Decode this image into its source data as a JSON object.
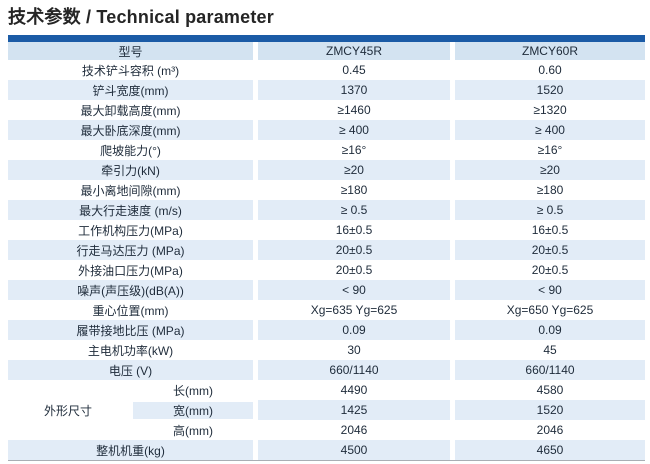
{
  "title": "技术参数 / Technical parameter",
  "colors": {
    "top_bar": "#1b5ba6",
    "header_row_bg": "#d3e3f1",
    "zebra_row_bg": "#e2ecf7",
    "text": "#1e2b3a"
  },
  "table": {
    "header": [
      "型号",
      "ZMCY45R",
      "ZMCY60R"
    ],
    "rows": [
      {
        "label": "技术铲斗容积 (m³)",
        "v1": "0.45",
        "v2": "0.60"
      },
      {
        "label": "铲斗宽度(mm)",
        "v1": "1370",
        "v2": "1520"
      },
      {
        "label": "最大卸载高度(mm)",
        "v1": "≥1460",
        "v2": "≥1320"
      },
      {
        "label": "最大卧底深度(mm)",
        "v1": "≥ 400",
        "v2": "≥ 400"
      },
      {
        "label": "爬坡能力(°)",
        "v1": "≥16°",
        "v2": "≥16°"
      },
      {
        "label": "牵引力(kN)",
        "v1": "≥20",
        "v2": "≥20"
      },
      {
        "label": "最小离地间隙(mm)",
        "v1": "≥180",
        "v2": "≥180"
      },
      {
        "label": "最大行走速度 (m/s)",
        "v1": "≥ 0.5",
        "v2": "≥ 0.5"
      },
      {
        "label": "工作机构压力(MPa)",
        "v1": "16±0.5",
        "v2": "16±0.5"
      },
      {
        "label": "行走马达压力 (MPa)",
        "v1": "20±0.5",
        "v2": "20±0.5"
      },
      {
        "label": "外接油口压力(MPa)",
        "v1": "20±0.5",
        "v2": "20±0.5"
      },
      {
        "label": "噪声(声压级)(dB(A))",
        "v1": "< 90",
        "v2": "< 90"
      },
      {
        "label": "重心位置(mm)",
        "v1": "Xg=635 Yg=625",
        "v2": "Xg=650 Yg=625"
      },
      {
        "label": "履带接地比压 (MPa)",
        "v1": "0.09",
        "v2": "0.09"
      },
      {
        "label": "主电机功率(kW)",
        "v1": "30",
        "v2": "45"
      },
      {
        "label": "电压 (V)",
        "v1": "660/1140",
        "v2": "660/1140"
      }
    ],
    "dim_group": {
      "label": "外形尺寸",
      "rows": [
        {
          "label": "长(mm)",
          "v1": "4490",
          "v2": "4580"
        },
        {
          "label": "宽(mm)",
          "v1": "1425",
          "v2": "1520"
        },
        {
          "label": "高(mm)",
          "v1": "2046",
          "v2": "2046"
        }
      ]
    },
    "weight_row": {
      "label": "整机机重(kg)",
      "v1": "4500",
      "v2": "4650"
    }
  }
}
